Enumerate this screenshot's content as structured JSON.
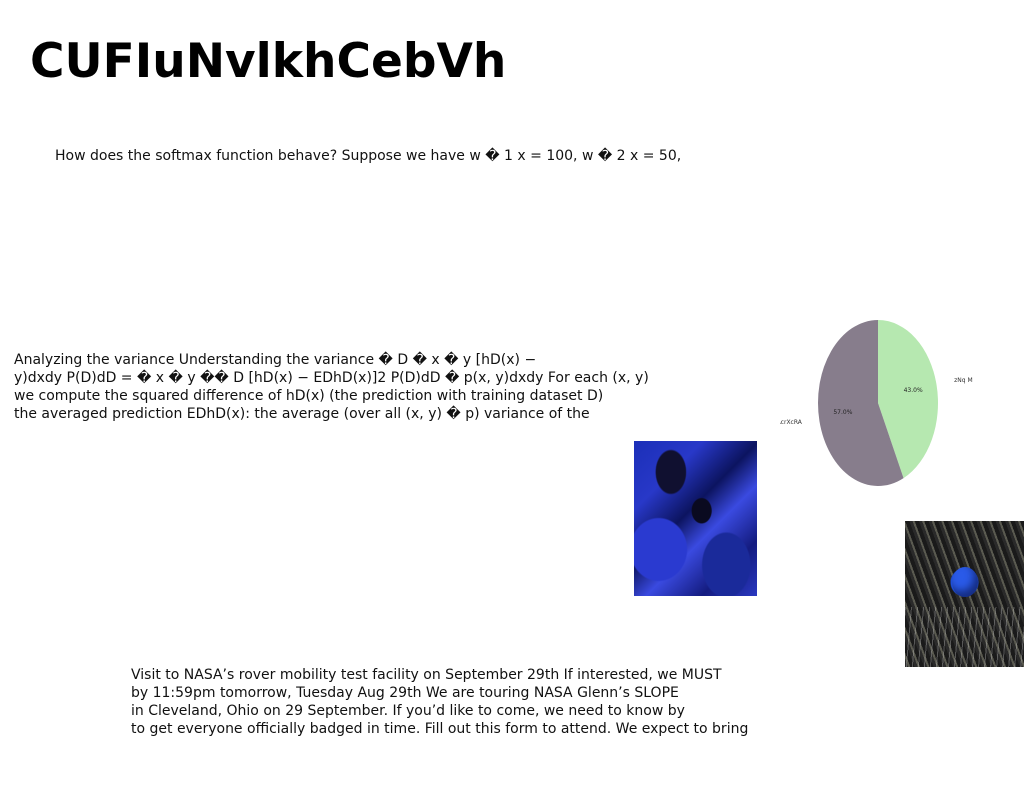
{
  "title": "CUFIuNvlkhCebVh",
  "paragraphs": {
    "softmax": [
      "How does the softmax function behave? Suppose we have w � 1 x = 100, w � 2 x = 50,"
    ],
    "variance": [
      "Analyzing the variance Understanding the variance � D � x � y [hD(x) −",
      "y)dxdy P(D)dD = � x � y �� D [hD(x) − EDhD(x)]2 P(D)dD � p(x, y)dxdy For each (x, y)",
      "we compute the squared difference of hD(x) (the prediction with training dataset D)",
      "the averaged prediction EDhD(x): the average (over all (x, y) � p) variance of the"
    ],
    "nasa": [
      "Visit to NASA’s rover mobility test facility on September 29th If interested, we MUST",
      "by 11:59pm tomorrow, Tuesday Aug 29th We are touring NASA Glenn’s SLOPE",
      "in Cleveland, Ohio on 29 September. If you’d like to come, we need to know by",
      "to get everyone officially badged in time. Fill out this form to attend. We expect to bring"
    ]
  },
  "chart_data": {
    "type": "pie",
    "labels": [
      "zNq M",
      "CAcrXcRA"
    ],
    "values": [
      43.0,
      57.0
    ],
    "value_labels": [
      "43.0%",
      "57.0%"
    ],
    "colors": [
      "#b6e8b0",
      "#877d8c"
    ],
    "start_angle_deg": 90,
    "direction": "clockwise"
  },
  "images": {
    "blue_texture": "blue-texture-photo",
    "palm_ball": "palm-blue-ball-photo"
  }
}
